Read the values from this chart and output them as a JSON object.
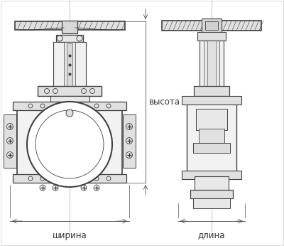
{
  "bg_color": "#ffffff",
  "line_color": "#404040",
  "dim_color": "#505050",
  "text_color": "#333333",
  "label_vysota": "высота",
  "label_shirina": "ширина",
  "label_dlina": "длина",
  "font_size": 8.5,
  "figsize": [
    4.0,
    3.46
  ],
  "dpi": 100
}
